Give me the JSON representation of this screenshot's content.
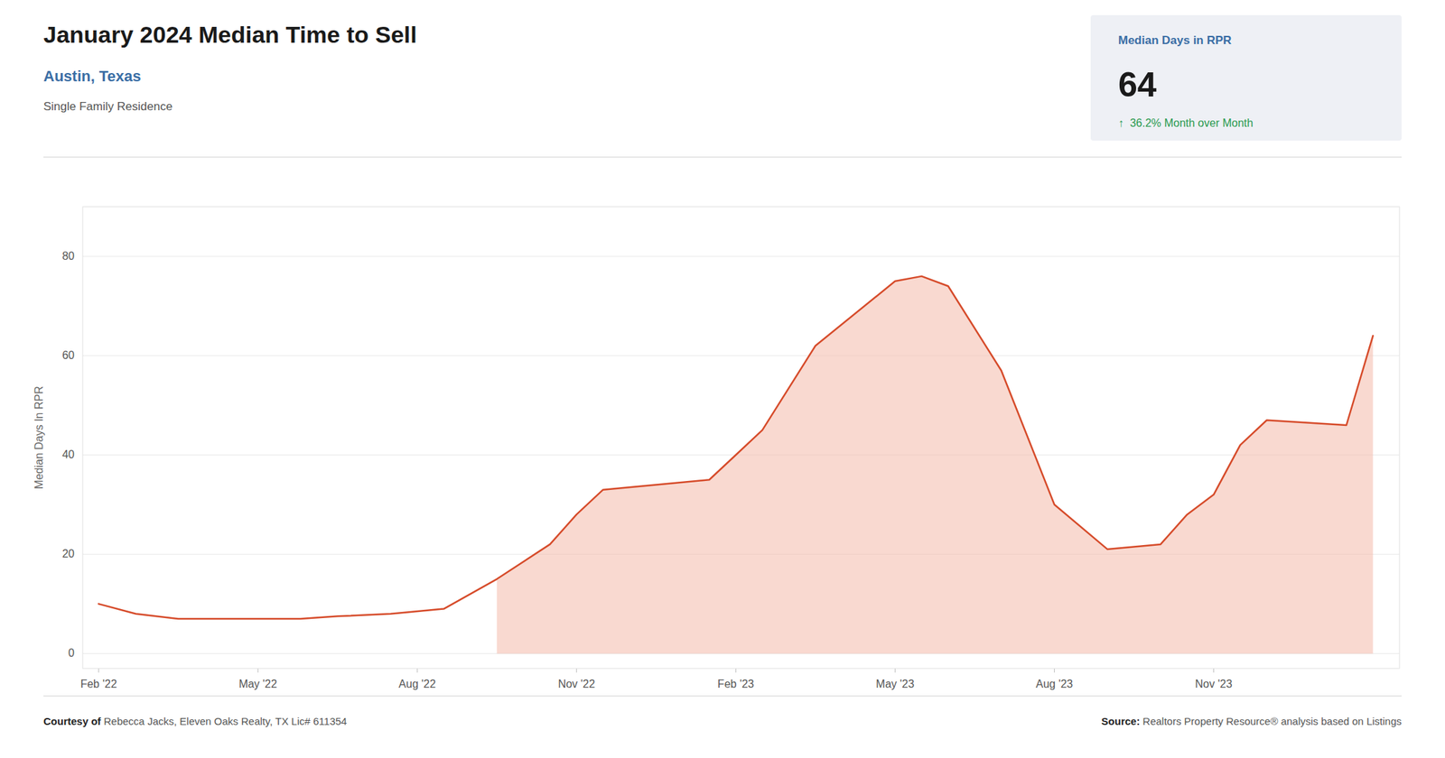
{
  "chart_data": {
    "type": "line",
    "title": "January 2024 Median Time to Sell",
    "subtitle": "Austin, Texas",
    "subtitle2": "Single Family Residence",
    "ylabel": "Median Days In RPR",
    "info_box": {
      "title": "Median Days in RPR",
      "value": "64",
      "change": "↑  36.2% Month over Month"
    },
    "footer": {
      "courtesy_bold": "Courtesy of",
      "courtesy_rest": " Rebecca Jacks, Eleven Oaks Realty, TX Lic# 611354",
      "source_bold": "Source:",
      "source_rest": " Realtors Property Resource® analysis based on Listings"
    },
    "x": [
      0,
      0.7,
      1.5,
      3,
      3.8,
      4.5,
      5.5,
      6.5,
      7.5,
      8.5,
      9.0,
      9.5,
      10.5,
      11.5,
      12.0,
      12.5,
      13.5,
      15.0,
      15.5,
      16.0,
      17.0,
      18.0,
      19.0,
      20.0,
      20.5,
      21.0,
      21.5,
      22.0,
      23.5,
      24.0
    ],
    "series": [
      {
        "type": "line",
        "color": "#d64b2a",
        "values": [
          10,
          8,
          7,
          7,
          7,
          7.5,
          8,
          9,
          15,
          22,
          28,
          33,
          34,
          35,
          40,
          45,
          62,
          75,
          76,
          74,
          57,
          30,
          21,
          22,
          28,
          32,
          42,
          47,
          46,
          64
        ]
      },
      {
        "type": "area",
        "color": "#f5c0b0",
        "values": [
          null,
          null,
          null,
          null,
          null,
          null,
          null,
          null,
          15,
          22,
          28,
          33,
          34,
          35,
          40,
          45,
          62,
          75,
          76,
          74,
          57,
          30,
          21,
          22,
          28,
          32,
          42,
          47,
          46,
          64
        ]
      }
    ],
    "xlim": [
      -0.3,
      24.5
    ],
    "xticks": [
      {
        "value": 0,
        "label": "Feb '22"
      },
      {
        "value": 3,
        "label": "May '22"
      },
      {
        "value": 6,
        "label": "Aug '22"
      },
      {
        "value": 9,
        "label": "Nov '22"
      },
      {
        "value": 12,
        "label": "Feb '23"
      },
      {
        "value": 15,
        "label": "May '23"
      },
      {
        "value": 18,
        "label": "Aug '23"
      },
      {
        "value": 21,
        "label": "Nov '23"
      }
    ],
    "ylim": [
      -3,
      90
    ],
    "yticks": [
      0,
      20,
      40,
      60,
      80
    ],
    "grid": true
  }
}
